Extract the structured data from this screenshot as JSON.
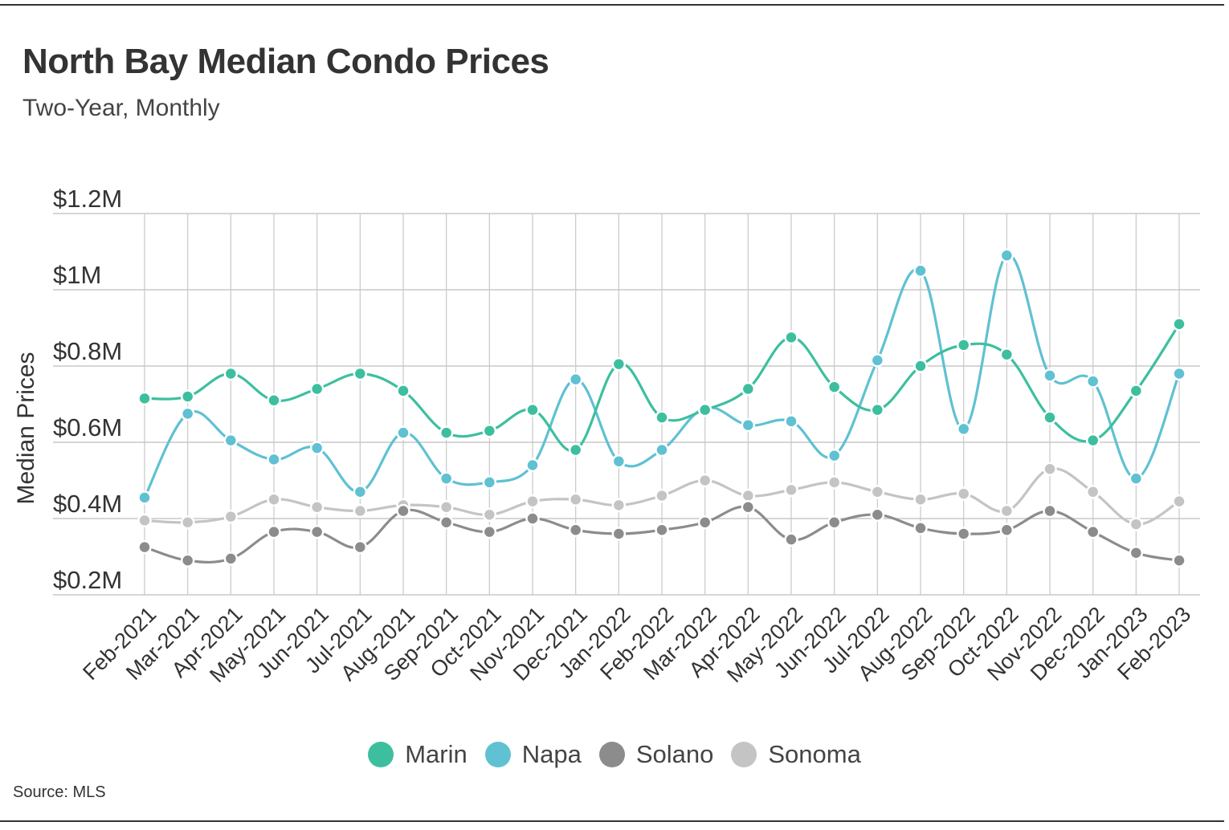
{
  "title": "North Bay Median Condo Prices",
  "subtitle": "Two-Year, Monthly",
  "source": "Source: MLS",
  "colors": {
    "Marin": "#3dbf9f",
    "Napa": "#5fc1d2",
    "Solano": "#8c8c8c",
    "Sonoma": "#c4c4c4",
    "grid": "#c8c8c8",
    "axis_text": "#333333"
  },
  "chart_data": {
    "type": "line",
    "title": "North Bay Median Condo Prices",
    "subtitle": "Two-Year, Monthly",
    "xlabel": "",
    "ylabel": "Median Prices",
    "ylim": [
      0.2,
      1.2
    ],
    "yticks": [
      0.2,
      0.4,
      0.6,
      0.8,
      1.0,
      1.2
    ],
    "ytick_labels": [
      "$0.2M",
      "$0.4M",
      "$0.6M",
      "$0.8M",
      "$1M",
      "$1.2M"
    ],
    "categories": [
      "Feb-2021",
      "Mar-2021",
      "Apr-2021",
      "May-2021",
      "Jun-2021",
      "Jul-2021",
      "Aug-2021",
      "Sep-2021",
      "Oct-2021",
      "Nov-2021",
      "Dec-2021",
      "Jan-2022",
      "Feb-2022",
      "Mar-2022",
      "Apr-2022",
      "May-2022",
      "Jun-2022",
      "Jul-2022",
      "Aug-2022",
      "Sep-2022",
      "Oct-2022",
      "Nov-2022",
      "Dec-2022",
      "Jan-2023",
      "Feb-2023"
    ],
    "legend_position": "bottom",
    "grid": true,
    "series": [
      {
        "name": "Marin",
        "values": [
          0.715,
          0.72,
          0.78,
          0.71,
          0.74,
          0.78,
          0.735,
          0.625,
          0.63,
          0.685,
          0.58,
          0.805,
          0.665,
          0.685,
          0.74,
          0.875,
          0.745,
          0.685,
          0.8,
          0.855,
          0.83,
          0.665,
          0.605,
          0.735,
          0.91
        ]
      },
      {
        "name": "Napa",
        "values": [
          0.455,
          0.675,
          0.605,
          0.555,
          0.585,
          0.47,
          0.625,
          0.505,
          0.495,
          0.54,
          0.765,
          0.55,
          0.58,
          0.69,
          0.645,
          0.655,
          0.565,
          0.815,
          1.05,
          0.635,
          1.09,
          0.775,
          0.76,
          0.505,
          0.78
        ]
      },
      {
        "name": "Solano",
        "values": [
          0.325,
          0.29,
          0.295,
          0.365,
          0.365,
          0.325,
          0.42,
          0.39,
          0.365,
          0.4,
          0.37,
          0.36,
          0.37,
          0.39,
          0.43,
          0.345,
          0.39,
          0.41,
          0.375,
          0.36,
          0.37,
          0.42,
          0.365,
          0.31,
          0.29
        ]
      },
      {
        "name": "Sonoma",
        "values": [
          0.395,
          0.39,
          0.405,
          0.45,
          0.43,
          0.42,
          0.435,
          0.43,
          0.41,
          0.445,
          0.45,
          0.435,
          0.46,
          0.5,
          0.46,
          0.475,
          0.495,
          0.47,
          0.45,
          0.465,
          0.42,
          0.53,
          0.47,
          0.385,
          0.445
        ]
      }
    ]
  }
}
